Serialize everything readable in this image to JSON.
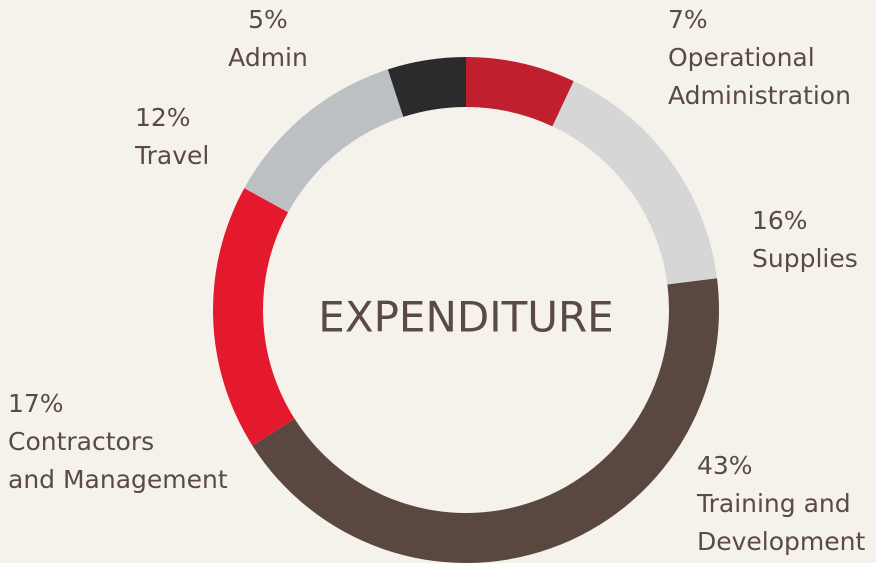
{
  "chart_data": {
    "type": "donut",
    "title": "EXPENDITURE",
    "categories": [
      "Operational\nAdministration",
      "Supplies",
      "Training and\nDevelopment",
      "Contractors\nand Management",
      "Travel",
      "Admin"
    ],
    "values": [
      7,
      16,
      43,
      17,
      12,
      5
    ],
    "value_labels": [
      "7%",
      "16%",
      "43%",
      "17%",
      "12%",
      "5%"
    ],
    "colors": [
      "#c01f2e",
      "#d6d6d6",
      "#5a4740",
      "#e5192d",
      "#bcc0c2",
      "#2b2b2b"
    ]
  }
}
